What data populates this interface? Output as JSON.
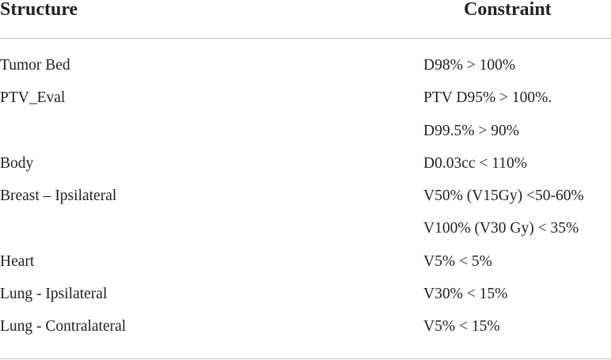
{
  "table": {
    "headers": {
      "structure": "Structure",
      "constraint": "Constraint"
    },
    "rows": [
      {
        "structure": "Tumor Bed",
        "constraint": "D98% > 100%"
      },
      {
        "structure": "PTV_Eval",
        "constraint": "PTV D95% > 100%."
      },
      {
        "structure": "",
        "constraint": "D99.5% > 90%"
      },
      {
        "structure": "Body",
        "constraint": "D0.03cc < 110%"
      },
      {
        "structure": "Breast – Ipsilateral",
        "constraint": "V50% (V15Gy) <50-60%"
      },
      {
        "structure": "",
        "constraint": "V100% (V30 Gy) < 35%"
      },
      {
        "structure": "Heart",
        "constraint": "V5% < 5%"
      },
      {
        "structure": "Lung - Ipsilateral",
        "constraint": "V30% < 15%"
      },
      {
        "structure": "Lung - Contralateral",
        "constraint": "V5% < 15%"
      }
    ]
  }
}
